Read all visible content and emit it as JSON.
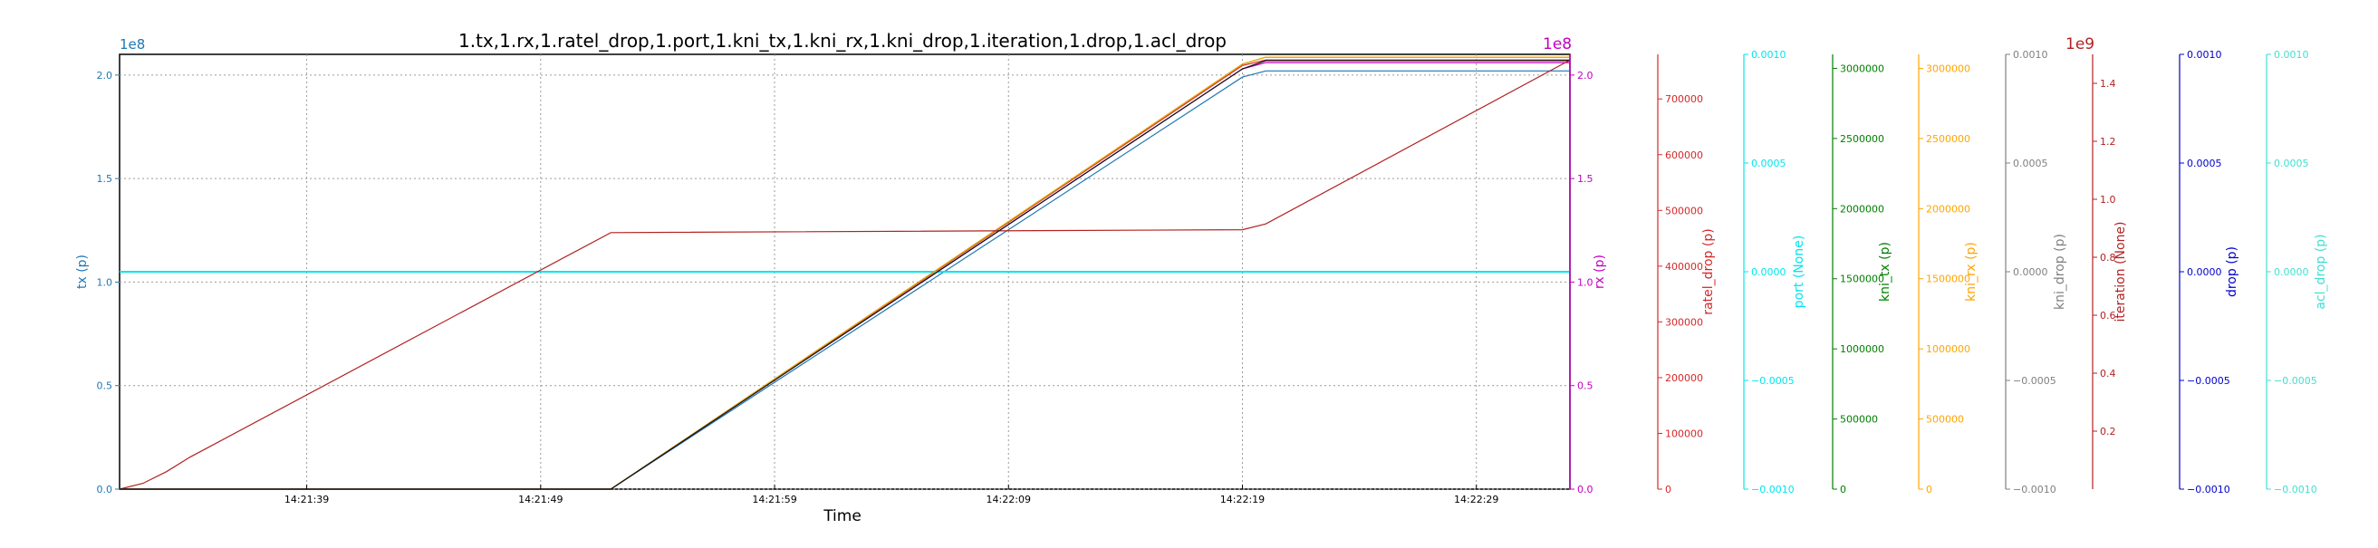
{
  "chart_data": {
    "type": "line",
    "title": "1.tx,1.rx,1.ratel_drop,1.port,1.kni_tx,1.kni_rx,1.kni_drop,1.iteration,1.drop,1.acl_drop",
    "xlabel": "Time",
    "grid": true,
    "x_ticks": [
      "14:21:39",
      "14:21:49",
      "14:21:59",
      "14:22:09",
      "14:22:19",
      "14:22:29"
    ],
    "x_range": [
      "14:21:31",
      "14:22:33"
    ],
    "axes": [
      {
        "key": "tx",
        "label": "tx (p)",
        "color": "#1f77b4",
        "side": "left",
        "multiplier": "1e8",
        "ylim": [
          0,
          210000000.0
        ],
        "ticks": [
          0,
          50000000.0,
          100000000.0,
          150000000.0,
          200000000.0
        ],
        "tick_labels": [
          "0.0",
          "0.5",
          "1.0",
          "1.5",
          "2.0"
        ]
      },
      {
        "key": "rx",
        "label": "rx (p)",
        "color": "#c000c0",
        "side": "right",
        "multiplier": "1e8",
        "ylim": [
          0,
          210000000.0
        ],
        "ticks": [
          0,
          50000000.0,
          100000000.0,
          150000000.0,
          200000000.0
        ],
        "tick_labels": [
          "0.0",
          "0.5",
          "1.0",
          "1.5",
          "2.0"
        ]
      },
      {
        "key": "ratel_drop",
        "label": "ratel_drop (p)",
        "color": "#d62728",
        "side": "right",
        "multiplier": "",
        "ylim": [
          0,
          780000
        ],
        "ticks": [
          0,
          100000,
          200000,
          300000,
          400000,
          500000,
          600000,
          700000
        ],
        "tick_labels": [
          "0",
          "100000",
          "200000",
          "300000",
          "400000",
          "500000",
          "600000",
          "700000"
        ]
      },
      {
        "key": "port",
        "label": "port (None)",
        "color": "#00e5ee",
        "side": "right",
        "multiplier": "",
        "ylim": [
          -0.001,
          0.001
        ],
        "ticks": [
          -0.001,
          -0.0005,
          0,
          0.0005,
          0.001
        ],
        "tick_labels": [
          "−0.0010",
          "−0.0005",
          "0.0000",
          "0.0005",
          "0.0010"
        ]
      },
      {
        "key": "kni_tx",
        "label": "kni_tx (p)",
        "color": "#008000",
        "side": "right",
        "multiplier": "",
        "ylim": [
          0,
          3100000
        ],
        "ticks": [
          0,
          500000,
          1000000,
          1500000,
          2000000,
          2500000,
          3000000
        ],
        "tick_labels": [
          "0",
          "500000",
          "1000000",
          "1500000",
          "2000000",
          "2500000",
          "3000000"
        ]
      },
      {
        "key": "kni_rx",
        "label": "kni_rx (p)",
        "color": "#ffa500",
        "side": "right",
        "multiplier": "",
        "ylim": [
          0,
          3100000
        ],
        "ticks": [
          0,
          500000,
          1000000,
          1500000,
          2000000,
          2500000,
          3000000
        ],
        "tick_labels": [
          "0",
          "500000",
          "1000000",
          "1500000",
          "2000000",
          "2500000",
          "3000000"
        ]
      },
      {
        "key": "kni_drop",
        "label": "kni_drop (p)",
        "color": "#808080",
        "side": "right",
        "multiplier": "",
        "ylim": [
          -0.001,
          0.001
        ],
        "ticks": [
          -0.001,
          -0.0005,
          0,
          0.0005,
          0.001
        ],
        "tick_labels": [
          "−0.0010",
          "−0.0005",
          "0.0000",
          "0.0005",
          "0.0010"
        ]
      },
      {
        "key": "iteration",
        "label": "iteration (None)",
        "color": "#b22222",
        "side": "right",
        "multiplier": "1e9",
        "ylim": [
          0,
          1500000000.0
        ],
        "ticks": [
          200000000.0,
          400000000.0,
          600000000.0,
          800000000.0,
          1000000000.0,
          1200000000.0,
          1400000000.0
        ],
        "tick_labels": [
          "0.2",
          "0.4",
          "0.6",
          "0.8",
          "1.0",
          "1.2",
          "1.4"
        ]
      },
      {
        "key": "drop",
        "label": "drop (p)",
        "color": "#0000cd",
        "side": "right",
        "multiplier": "",
        "ylim": [
          -0.001,
          0.001
        ],
        "ticks": [
          -0.001,
          -0.0005,
          0,
          0.0005,
          0.001
        ],
        "tick_labels": [
          "−0.0010",
          "−0.0005",
          "0.0000",
          "0.0005",
          "0.0010"
        ]
      },
      {
        "key": "acl_drop",
        "label": "acl_drop (p)",
        "color": "#40e0d0",
        "side": "right",
        "multiplier": "",
        "ylim": [
          -0.001,
          0.001
        ],
        "ticks": [
          -0.001,
          -0.0005,
          0,
          0.0005,
          0.001
        ],
        "tick_labels": [
          "−0.0010",
          "−0.0005",
          "0.0000",
          "0.0005",
          "0.0010"
        ]
      }
    ],
    "series": [
      {
        "axis": "tx",
        "color": "#1f77b4",
        "points": [
          [
            "14:21:31",
            0
          ],
          [
            "14:21:52",
            0
          ],
          [
            "14:22:19",
            199000000.0
          ],
          [
            "14:22:20",
            202000000.0
          ],
          [
            "14:22:33",
            202000000.0
          ]
        ]
      },
      {
        "axis": "rx",
        "color": "#c000c0",
        "points": [
          [
            "14:21:31",
            0
          ],
          [
            "14:21:52",
            0
          ],
          [
            "14:22:19",
            203000000.0
          ],
          [
            "14:22:20",
            206000000.0
          ],
          [
            "14:22:33",
            206000000.0
          ]
        ]
      },
      {
        "axis": "ratel_drop",
        "color": "#d62728",
        "points": [
          [
            "14:21:31",
            0
          ],
          [
            "14:21:52",
            0
          ],
          [
            "14:22:19",
            760000
          ],
          [
            "14:22:20",
            770000
          ],
          [
            "14:22:33",
            770000
          ]
        ]
      },
      {
        "axis": "port",
        "color": "#00e5ee",
        "points": [
          [
            "14:21:31",
            0
          ],
          [
            "14:22:33",
            0
          ]
        ]
      },
      {
        "axis": "kni_tx",
        "color": "#008000",
        "points": [
          [
            "14:21:31",
            0
          ],
          [
            "14:21:52",
            0
          ],
          [
            "14:22:19",
            3030000
          ],
          [
            "14:22:20",
            3080000
          ],
          [
            "14:22:33",
            3080000
          ]
        ]
      },
      {
        "axis": "kni_rx",
        "color": "#ffa500",
        "points": [
          [
            "14:21:31",
            0
          ],
          [
            "14:21:52",
            0
          ],
          [
            "14:22:19",
            3030000
          ],
          [
            "14:22:20",
            3080000
          ],
          [
            "14:22:33",
            3080000
          ]
        ]
      },
      {
        "axis": "iteration",
        "color": "#b22222",
        "points": [
          [
            "14:21:31",
            0
          ],
          [
            "14:21:32",
            20000000.0
          ],
          [
            "14:21:33",
            60000000.0
          ],
          [
            "14:21:34",
            110000000.0
          ],
          [
            "14:21:52",
            885000000.0
          ],
          [
            "14:22:19",
            895000000.0
          ],
          [
            "14:22:20",
            915000000.0
          ],
          [
            "14:22:33",
            1480000000.0
          ]
        ]
      },
      {
        "axis": "tx",
        "color": "#111111",
        "points": [
          [
            "14:21:31",
            0
          ],
          [
            "14:21:52",
            0
          ],
          [
            "14:22:19",
            203000000.0
          ],
          [
            "14:22:20",
            207000000.0
          ],
          [
            "14:22:33",
            207000000.0
          ]
        ]
      }
    ]
  }
}
